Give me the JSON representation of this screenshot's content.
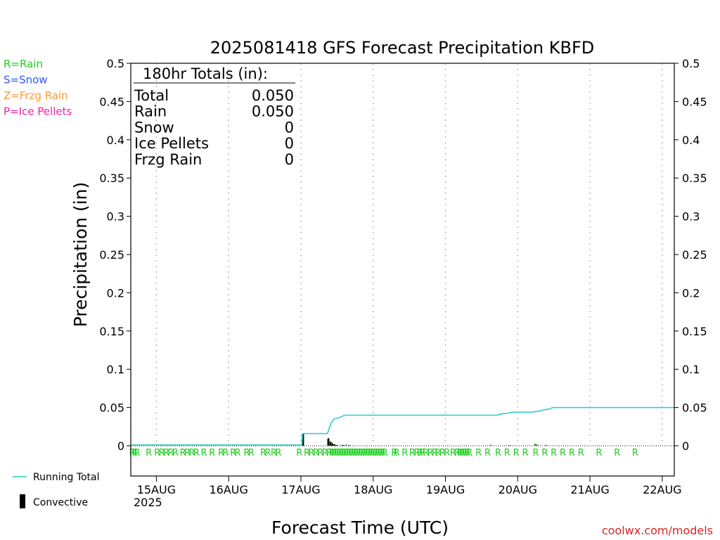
{
  "chart_data": {
    "type": "bar",
    "title": "2025081418 GFS Forecast Precipitation KBFD",
    "xlabel": "Forecast Time (UTC)",
    "ylabel": "Precipitation (in)",
    "ylim": [
      0,
      0.5
    ],
    "y_ticks": [
      "0",
      "0.05",
      "0.1",
      "0.15",
      "0.2",
      "0.25",
      "0.3",
      "0.35",
      "0.4",
      "0.45",
      "0.5"
    ],
    "xlim_hours": [
      -2.5,
      178
    ],
    "x_ticks": [
      {
        "label": "15AUG",
        "hour": 6
      },
      {
        "label": "16AUG",
        "hour": 30
      },
      {
        "label": "17AUG",
        "hour": 54
      },
      {
        "label": "18AUG",
        "hour": 78
      },
      {
        "label": "19AUG",
        "hour": 102
      },
      {
        "label": "20AUG",
        "hour": 126
      },
      {
        "label": "21AUG",
        "hour": 150
      },
      {
        "label": "22AUG",
        "hour": 174
      }
    ],
    "year_label": "2025",
    "grid": "vertical dotted at day boundaries",
    "type_legend": [
      {
        "text": "R=Rain",
        "color": "#22cc22"
      },
      {
        "text": "S=Snow",
        "color": "#3355ff"
      },
      {
        "text": "Z=Frzg Rain",
        "color": "#ff9933"
      },
      {
        "text": "P=Ice Pellets",
        "color": "#ee22aa"
      }
    ],
    "totals": {
      "header": "180hr Totals (in):",
      "rows": [
        {
          "label": "Total",
          "value": "0.050"
        },
        {
          "label": "Rain",
          "value": "0.050"
        },
        {
          "label": "Snow",
          "value": "0"
        },
        {
          "label": "Ice Pellets",
          "value": "0"
        },
        {
          "label": "Frzg Rain",
          "value": "0"
        }
      ]
    },
    "series": [
      {
        "name": "Running Total",
        "kind": "line",
        "color": "#22cccc",
        "points": [
          [
            -2.5,
            0.001
          ],
          [
            54.3,
            0.001
          ],
          [
            54.6,
            0.016
          ],
          [
            62.8,
            0.016
          ],
          [
            63.5,
            0.024
          ],
          [
            64.2,
            0.031
          ],
          [
            65.0,
            0.035
          ],
          [
            66.0,
            0.036
          ],
          [
            67.0,
            0.037
          ],
          [
            68.5,
            0.04
          ],
          [
            91.0,
            0.04
          ],
          [
            119.0,
            0.04
          ],
          [
            120.0,
            0.041
          ],
          [
            121.0,
            0.042
          ],
          [
            122.0,
            0.042
          ],
          [
            123.0,
            0.043
          ],
          [
            125.0,
            0.044
          ],
          [
            131.0,
            0.044
          ],
          [
            132.0,
            0.045
          ],
          [
            133.0,
            0.045
          ],
          [
            134.5,
            0.047
          ],
          [
            136.5,
            0.048
          ],
          [
            137.5,
            0.05
          ],
          [
            178,
            0.05
          ]
        ]
      },
      {
        "name": "Precipitation",
        "kind": "bar",
        "color": "#22aa22",
        "bars": [
          [
            54.6,
            0.015
          ],
          [
            63.0,
            0.009
          ],
          [
            63.6,
            0.006
          ],
          [
            64.2,
            0.004
          ],
          [
            64.8,
            0.002
          ],
          [
            65.5,
            0.001
          ],
          [
            67.5,
            0.001
          ],
          [
            69.0,
            0.0015
          ],
          [
            117.0,
            0.0012
          ],
          [
            123.5,
            0.001
          ],
          [
            131.8,
            0.0025
          ],
          [
            132.4,
            0.0015
          ],
          [
            135.5,
            0.0012
          ]
        ]
      },
      {
        "name": "Convective",
        "kind": "bar",
        "color": "#000000",
        "bars": [
          [
            54.8,
            0.016
          ],
          [
            63.2,
            0.01
          ],
          [
            63.9,
            0.005
          ],
          [
            64.5,
            0.003
          ],
          [
            65.2,
            0.002
          ],
          [
            66.0,
            0.001
          ],
          [
            68.0,
            0.001
          ],
          [
            70.0,
            0.0008
          ]
        ]
      }
    ],
    "ptype_letters": {
      "letter": "R",
      "color": "#22cc22",
      "hours": [
        -2.0,
        -1.2,
        -0.4,
        3.5,
        6.3,
        7.8,
        9.3,
        10.8,
        12.3,
        14.8,
        16.3,
        17.8,
        19.3,
        21.8,
        24.5,
        27.5,
        29.0,
        31.5,
        33.0,
        36.0,
        37.5,
        41.5,
        43.0,
        45.0,
        46.5,
        53.5,
        56.0,
        57.5,
        59.0,
        60.5,
        62.0,
        63.5,
        64.3,
        65.1,
        65.9,
        66.7,
        67.5,
        68.3,
        69.1,
        69.9,
        70.7,
        71.5,
        72.3,
        73.1,
        73.9,
        74.7,
        75.5,
        76.3,
        77.1,
        77.9,
        78.7,
        79.5,
        80.3,
        81.1,
        81.9,
        85.0,
        85.8,
        88.5,
        91.0,
        92.5,
        93.5,
        94.3,
        95.5,
        97.0,
        98.5,
        99.5,
        101.0,
        102.5,
        104.5,
        106.0,
        106.8,
        107.6,
        108.4,
        109.2,
        110.0,
        113.0,
        116.0,
        119.5,
        122.5,
        125.5,
        128.5,
        132.0,
        135.0,
        138.0,
        141.0,
        144.0,
        147.0,
        153.0,
        159.0,
        165.0
      ]
    },
    "bottom_legend": [
      {
        "text": "Running Total",
        "kind": "line",
        "color": "#22cccc"
      },
      {
        "text": "Convective",
        "kind": "bar",
        "color": "#000000"
      }
    ],
    "credit": "coolwx.com/models",
    "credit_color": "#dd2222"
  }
}
